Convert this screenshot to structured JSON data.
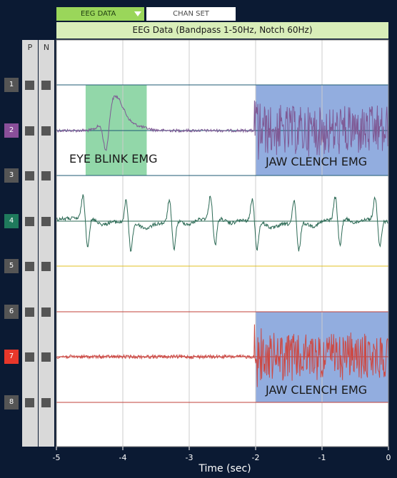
{
  "tabs": {
    "eeg_data": "EEG DATA",
    "chan_set": "CHAN SET"
  },
  "columns": {
    "p": "P",
    "n": "N"
  },
  "colors": {
    "ch1": "#555555",
    "ch2": "#8a4f9a",
    "ch3": "#555555",
    "ch4": "#1f7a5c",
    "ch5": "#555555",
    "ch6": "#555555",
    "ch7": "#e8372a",
    "ch8": "#555555",
    "trace_ch2": "#7f5a95",
    "trace_ch4": "#2c6a55",
    "trace_ch7": "#cc4a45",
    "baseline_1_2_3": "#1d5a73",
    "baseline_4": "#2c6a55",
    "baseline_5": "#e0c020",
    "baseline_6_7_8": "#c0403a",
    "highlight_green": "#7fd09a",
    "highlight_blue": "#7f9fd9"
  },
  "chart_data": {
    "type": "line",
    "title": "EEG Data (Bandpass 1-50Hz, Notch 60Hz)",
    "xlabel": "Time (sec)",
    "ylabel": "",
    "xlim": [
      -5,
      0
    ],
    "x_ticks": [
      "-5",
      "-4",
      "-3",
      "-2",
      "-1",
      "0"
    ],
    "channels": [
      "1",
      "2",
      "3",
      "4",
      "5",
      "6",
      "7",
      "8"
    ],
    "series_channels": [
      2,
      4,
      7
    ],
    "regions": [
      {
        "label": "EYE BLINK EMG",
        "x_start": -4.56,
        "x_end": -3.64,
        "top_channel": 1,
        "bottom_channel": 3,
        "color": "green"
      },
      {
        "label": "JAW CLENCH EMG",
        "x_start": -2.0,
        "x_end": 0,
        "top_channel": 1,
        "bottom_channel": 3,
        "color": "blue"
      },
      {
        "label": "JAW CLENCH EMG",
        "x_start": -2.0,
        "x_end": 0,
        "top_channel": 6,
        "bottom_channel": 8,
        "color": "blue"
      }
    ],
    "grid": true
  }
}
